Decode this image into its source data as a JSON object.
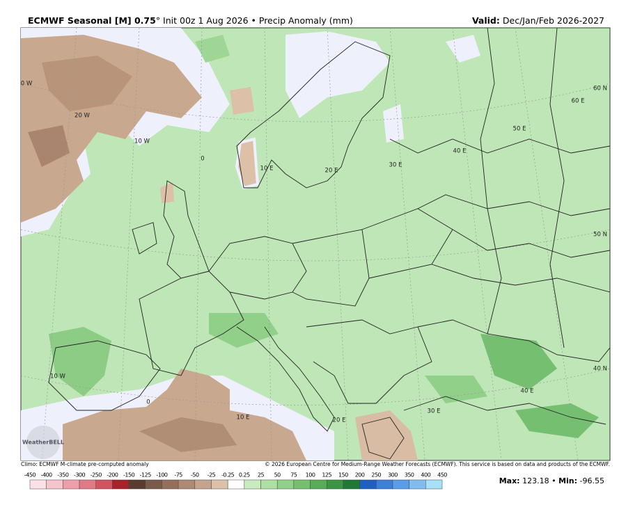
{
  "header": {
    "title_model": "ECMWF Seasonal [M] 0.75",
    "title_rest": "° Init 00z 1 Aug 2026 • Precip Anomaly (mm)",
    "valid_label": "Valid:",
    "valid_value": "Dec/Jan/Feb 2026-2027"
  },
  "map": {
    "grid_labels": [
      "0 W",
      "20 W",
      "10 W",
      "0",
      "10 E",
      "20 E",
      "30 E",
      "40 E",
      "50 E",
      "60 E",
      "60 N",
      "50 N",
      "40 N",
      "10 W",
      "0",
      "10 E",
      "20 E",
      "30 E",
      "40 E"
    ],
    "logo": "WeatherBELL"
  },
  "footer": {
    "climo": "Climo: ECMWF M-climate pre-computed anomaly",
    "copyright": "© 2026 European Centre for Medium-Range Weather Forecasts (ECMWF). This service is based on data and products of the ECMWF."
  },
  "colorbar": {
    "labels": [
      "-450",
      "-400",
      "-350",
      "-300",
      "-250",
      "-200",
      "-150",
      "-125",
      "-100",
      "-75",
      "-50",
      "-25",
      "-0.25",
      "0.25",
      "25",
      "50",
      "75",
      "100",
      "125",
      "150",
      "200",
      "250",
      "300",
      "350",
      "400",
      "450"
    ],
    "colors": [
      "#fbe0e6",
      "#f6c4cc",
      "#ee9ea8",
      "#e07a84",
      "#d05560",
      "#a8222a",
      "#5a3c30",
      "#7a5a48",
      "#94705c",
      "#ac8a74",
      "#c4a48c",
      "#dcc0a8",
      "#ffffff",
      "#c8ecc0",
      "#aee0a4",
      "#90d088",
      "#74c070",
      "#58ac58",
      "#3c9444",
      "#1e7a34",
      "#2060c0",
      "#3c80d8",
      "#5a9ce8",
      "#80bcf0",
      "#a8e0f8"
    ]
  },
  "stats": {
    "max_label": "Max:",
    "max_value": "123.18",
    "sep": "•",
    "min_label": "Min:",
    "min_value": "-96.55"
  }
}
